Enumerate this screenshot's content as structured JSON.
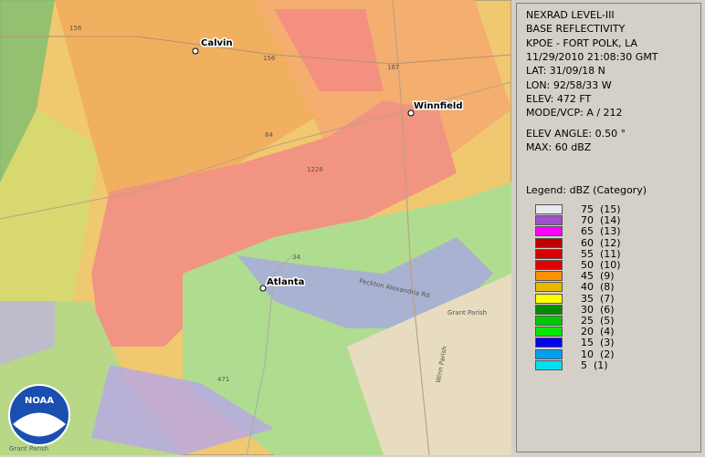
{
  "map": {
    "labels": {
      "calvin": "Calvin",
      "winnfield": "Winnfield",
      "atlanta": "Atlanta",
      "road_156": "156",
      "road_84": "84",
      "road_1228": "1228",
      "road_34": "34",
      "road_167": "167",
      "road_471": "471",
      "peckton": "Peckton Alexandria Rd",
      "grant_parish": "Grant Parish",
      "grant_parish_bottom": "Grant Parish",
      "winn_parish": "Winn Parish"
    },
    "logo": "NOAA"
  },
  "panel": {
    "info": [
      "NEXRAD LEVEL-III",
      "BASE REFLECTIVITY",
      "KPOE - FORT POLK, LA",
      "11/29/2010 21:08:30 GMT",
      "LAT: 31/09/18 N",
      "LON: 92/58/33 W",
      "ELEV: 472 FT",
      "MODE/VCP: A / 212"
    ],
    "info2": [
      "ELEV ANGLE: 0.50 °",
      "MAX: 60 dBZ"
    ],
    "legend_title": "Legend: dBZ (Category)",
    "legend": [
      {
        "label": "75  (15)",
        "color": "#e8e8f0"
      },
      {
        "label": "70  (14)",
        "color": "#a050d0"
      },
      {
        "label": "65  (13)",
        "color": "#ff00ff"
      },
      {
        "label": "60  (12)",
        "color": "#c00000"
      },
      {
        "label": "55  (11)",
        "color": "#d80000"
      },
      {
        "label": "50  (10)",
        "color": "#e00000"
      },
      {
        "label": "45  (9)",
        "color": "#ff9000"
      },
      {
        "label": "40  (8)",
        "color": "#e8b800"
      },
      {
        "label": "35  (7)",
        "color": "#ffff00"
      },
      {
        "label": "30  (6)",
        "color": "#008c00"
      },
      {
        "label": "25  (5)",
        "color": "#00c800"
      },
      {
        "label": "20  (4)",
        "color": "#00e800"
      },
      {
        "label": "15  (3)",
        "color": "#0000f0"
      },
      {
        "label": "10  (2)",
        "color": "#00a0f0"
      },
      {
        "label": "5  (1)",
        "color": "#00e0f0"
      }
    ]
  }
}
